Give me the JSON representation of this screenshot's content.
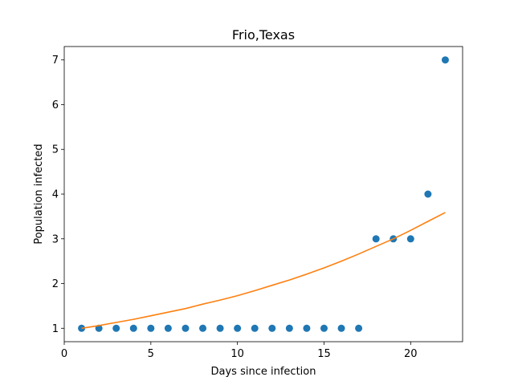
{
  "chart_data": {
    "type": "scatter",
    "title": "Frio,Texas",
    "xlabel": "Days since infection",
    "ylabel": "Population infected",
    "xlim": [
      0,
      23
    ],
    "ylim": [
      0.7,
      7.3
    ],
    "xticks": [
      0,
      5,
      10,
      15,
      20
    ],
    "yticks": [
      1,
      2,
      3,
      4,
      5,
      6,
      7
    ],
    "grid": false,
    "series": [
      {
        "kind": "points",
        "color": "#1f77b4",
        "x": [
          1,
          2,
          3,
          4,
          5,
          6,
          7,
          8,
          9,
          10,
          11,
          12,
          13,
          14,
          15,
          16,
          17,
          18,
          19,
          20,
          21,
          22
        ],
        "y": [
          1,
          1,
          1,
          1,
          1,
          1,
          1,
          1,
          1,
          1,
          1,
          1,
          1,
          1,
          1,
          1,
          1,
          3,
          3,
          3,
          4,
          7
        ]
      },
      {
        "kind": "fit-line",
        "color": "#ff7f0e",
        "x": [
          1,
          2,
          3,
          4,
          5,
          6,
          7,
          8,
          9,
          10,
          11,
          12,
          13,
          14,
          15,
          16,
          17,
          18,
          19,
          20,
          21,
          22
        ],
        "y": [
          1.0,
          1.06,
          1.13,
          1.2,
          1.28,
          1.36,
          1.44,
          1.54,
          1.63,
          1.73,
          1.84,
          1.96,
          2.08,
          2.21,
          2.35,
          2.5,
          2.66,
          2.83,
          3.0,
          3.19,
          3.39,
          3.59
        ]
      }
    ]
  }
}
